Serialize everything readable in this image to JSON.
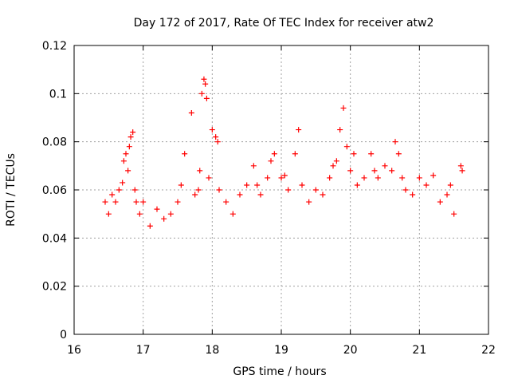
{
  "chart_data": {
    "type": "scatter",
    "title": "Day 172 of 2017, Rate Of TEC Index for receiver atw2",
    "xlabel": "GPS time / hours",
    "ylabel": "ROTI / TECUs",
    "xlim": [
      16,
      22
    ],
    "ylim": [
      0,
      0.12
    ],
    "xticks": [
      16,
      17,
      18,
      19,
      20,
      21,
      22
    ],
    "yticks": [
      0,
      0.02,
      0.04,
      0.06,
      0.08,
      0.1,
      0.12
    ],
    "xtick_labels": [
      "16",
      "17",
      "18",
      "19",
      "20",
      "21",
      "22"
    ],
    "ytick_labels": [
      "0",
      "0.02",
      "0.04",
      "0.06",
      "0.08",
      "0.1",
      "0.12"
    ],
    "grid": true,
    "marker": "plus",
    "marker_color": "#ff0000",
    "series": [
      {
        "name": "ROTI",
        "color": "#ff0000",
        "x": [
          16.45,
          16.5,
          16.55,
          16.6,
          16.65,
          16.7,
          16.72,
          16.75,
          16.78,
          16.8,
          16.82,
          16.85,
          16.88,
          16.9,
          16.95,
          17.0,
          17.1,
          17.2,
          17.3,
          17.4,
          17.5,
          17.55,
          17.6,
          17.7,
          17.75,
          17.8,
          17.82,
          17.85,
          17.88,
          17.9,
          17.92,
          17.95,
          18.0,
          18.05,
          18.08,
          18.1,
          18.2,
          18.3,
          18.4,
          18.5,
          18.6,
          18.65,
          18.7,
          18.8,
          18.85,
          18.9,
          19.0,
          19.05,
          19.1,
          19.2,
          19.25,
          19.3,
          19.4,
          19.5,
          19.6,
          19.7,
          19.75,
          19.8,
          19.85,
          19.9,
          19.95,
          20.0,
          20.05,
          20.1,
          20.2,
          20.3,
          20.35,
          20.4,
          20.5,
          20.6,
          20.65,
          20.7,
          20.75,
          20.8,
          20.9,
          21.0,
          21.1,
          21.2,
          21.3,
          21.4,
          21.45,
          21.5,
          21.6,
          21.62
        ],
        "y": [
          0.055,
          0.05,
          0.058,
          0.055,
          0.06,
          0.063,
          0.072,
          0.075,
          0.068,
          0.078,
          0.082,
          0.084,
          0.06,
          0.055,
          0.05,
          0.055,
          0.045,
          0.052,
          0.048,
          0.05,
          0.055,
          0.062,
          0.075,
          0.092,
          0.058,
          0.06,
          0.068,
          0.1,
          0.106,
          0.104,
          0.098,
          0.065,
          0.085,
          0.082,
          0.08,
          0.06,
          0.055,
          0.05,
          0.058,
          0.062,
          0.07,
          0.062,
          0.058,
          0.065,
          0.072,
          0.075,
          0.065,
          0.066,
          0.06,
          0.075,
          0.085,
          0.062,
          0.055,
          0.06,
          0.058,
          0.065,
          0.07,
          0.072,
          0.085,
          0.094,
          0.078,
          0.068,
          0.075,
          0.062,
          0.065,
          0.075,
          0.068,
          0.065,
          0.07,
          0.068,
          0.08,
          0.075,
          0.065,
          0.06,
          0.058,
          0.065,
          0.062,
          0.066,
          0.055,
          0.058,
          0.062,
          0.05,
          0.07,
          0.068
        ]
      }
    ]
  }
}
